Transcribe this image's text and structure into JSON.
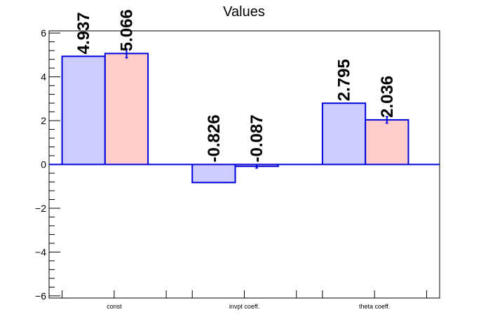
{
  "chart_data": {
    "type": "bar",
    "title": "Values",
    "categories": [
      "const",
      "invpt coeff.",
      "theta coeff."
    ],
    "series": [
      {
        "values": [
          4.937,
          -0.826,
          2.795
        ],
        "errors": [
          0,
          0,
          0
        ],
        "fill": "#ccccff",
        "stroke": "#0000dd"
      },
      {
        "values": [
          5.066,
          -0.087,
          2.036
        ],
        "errors": [
          0.2,
          0.08,
          0.15
        ],
        "fill": "#ffcccc",
        "stroke": "#0000dd"
      }
    ],
    "data_labels": [
      [
        "4.937",
        "-0.826",
        "2.795"
      ],
      [
        "5.066",
        "-0.087",
        "2.036"
      ]
    ],
    "yticks": [
      -6,
      -4,
      -2,
      0,
      2,
      4,
      6
    ],
    "ytick_labels": [
      "−6",
      "−4",
      "−2",
      "0",
      "2",
      "4",
      "6"
    ],
    "ylim": [
      -6.1,
      6.1
    ],
    "xlabel": "",
    "ylabel": "",
    "grid": false,
    "zero_line_color": "#0000dd"
  }
}
